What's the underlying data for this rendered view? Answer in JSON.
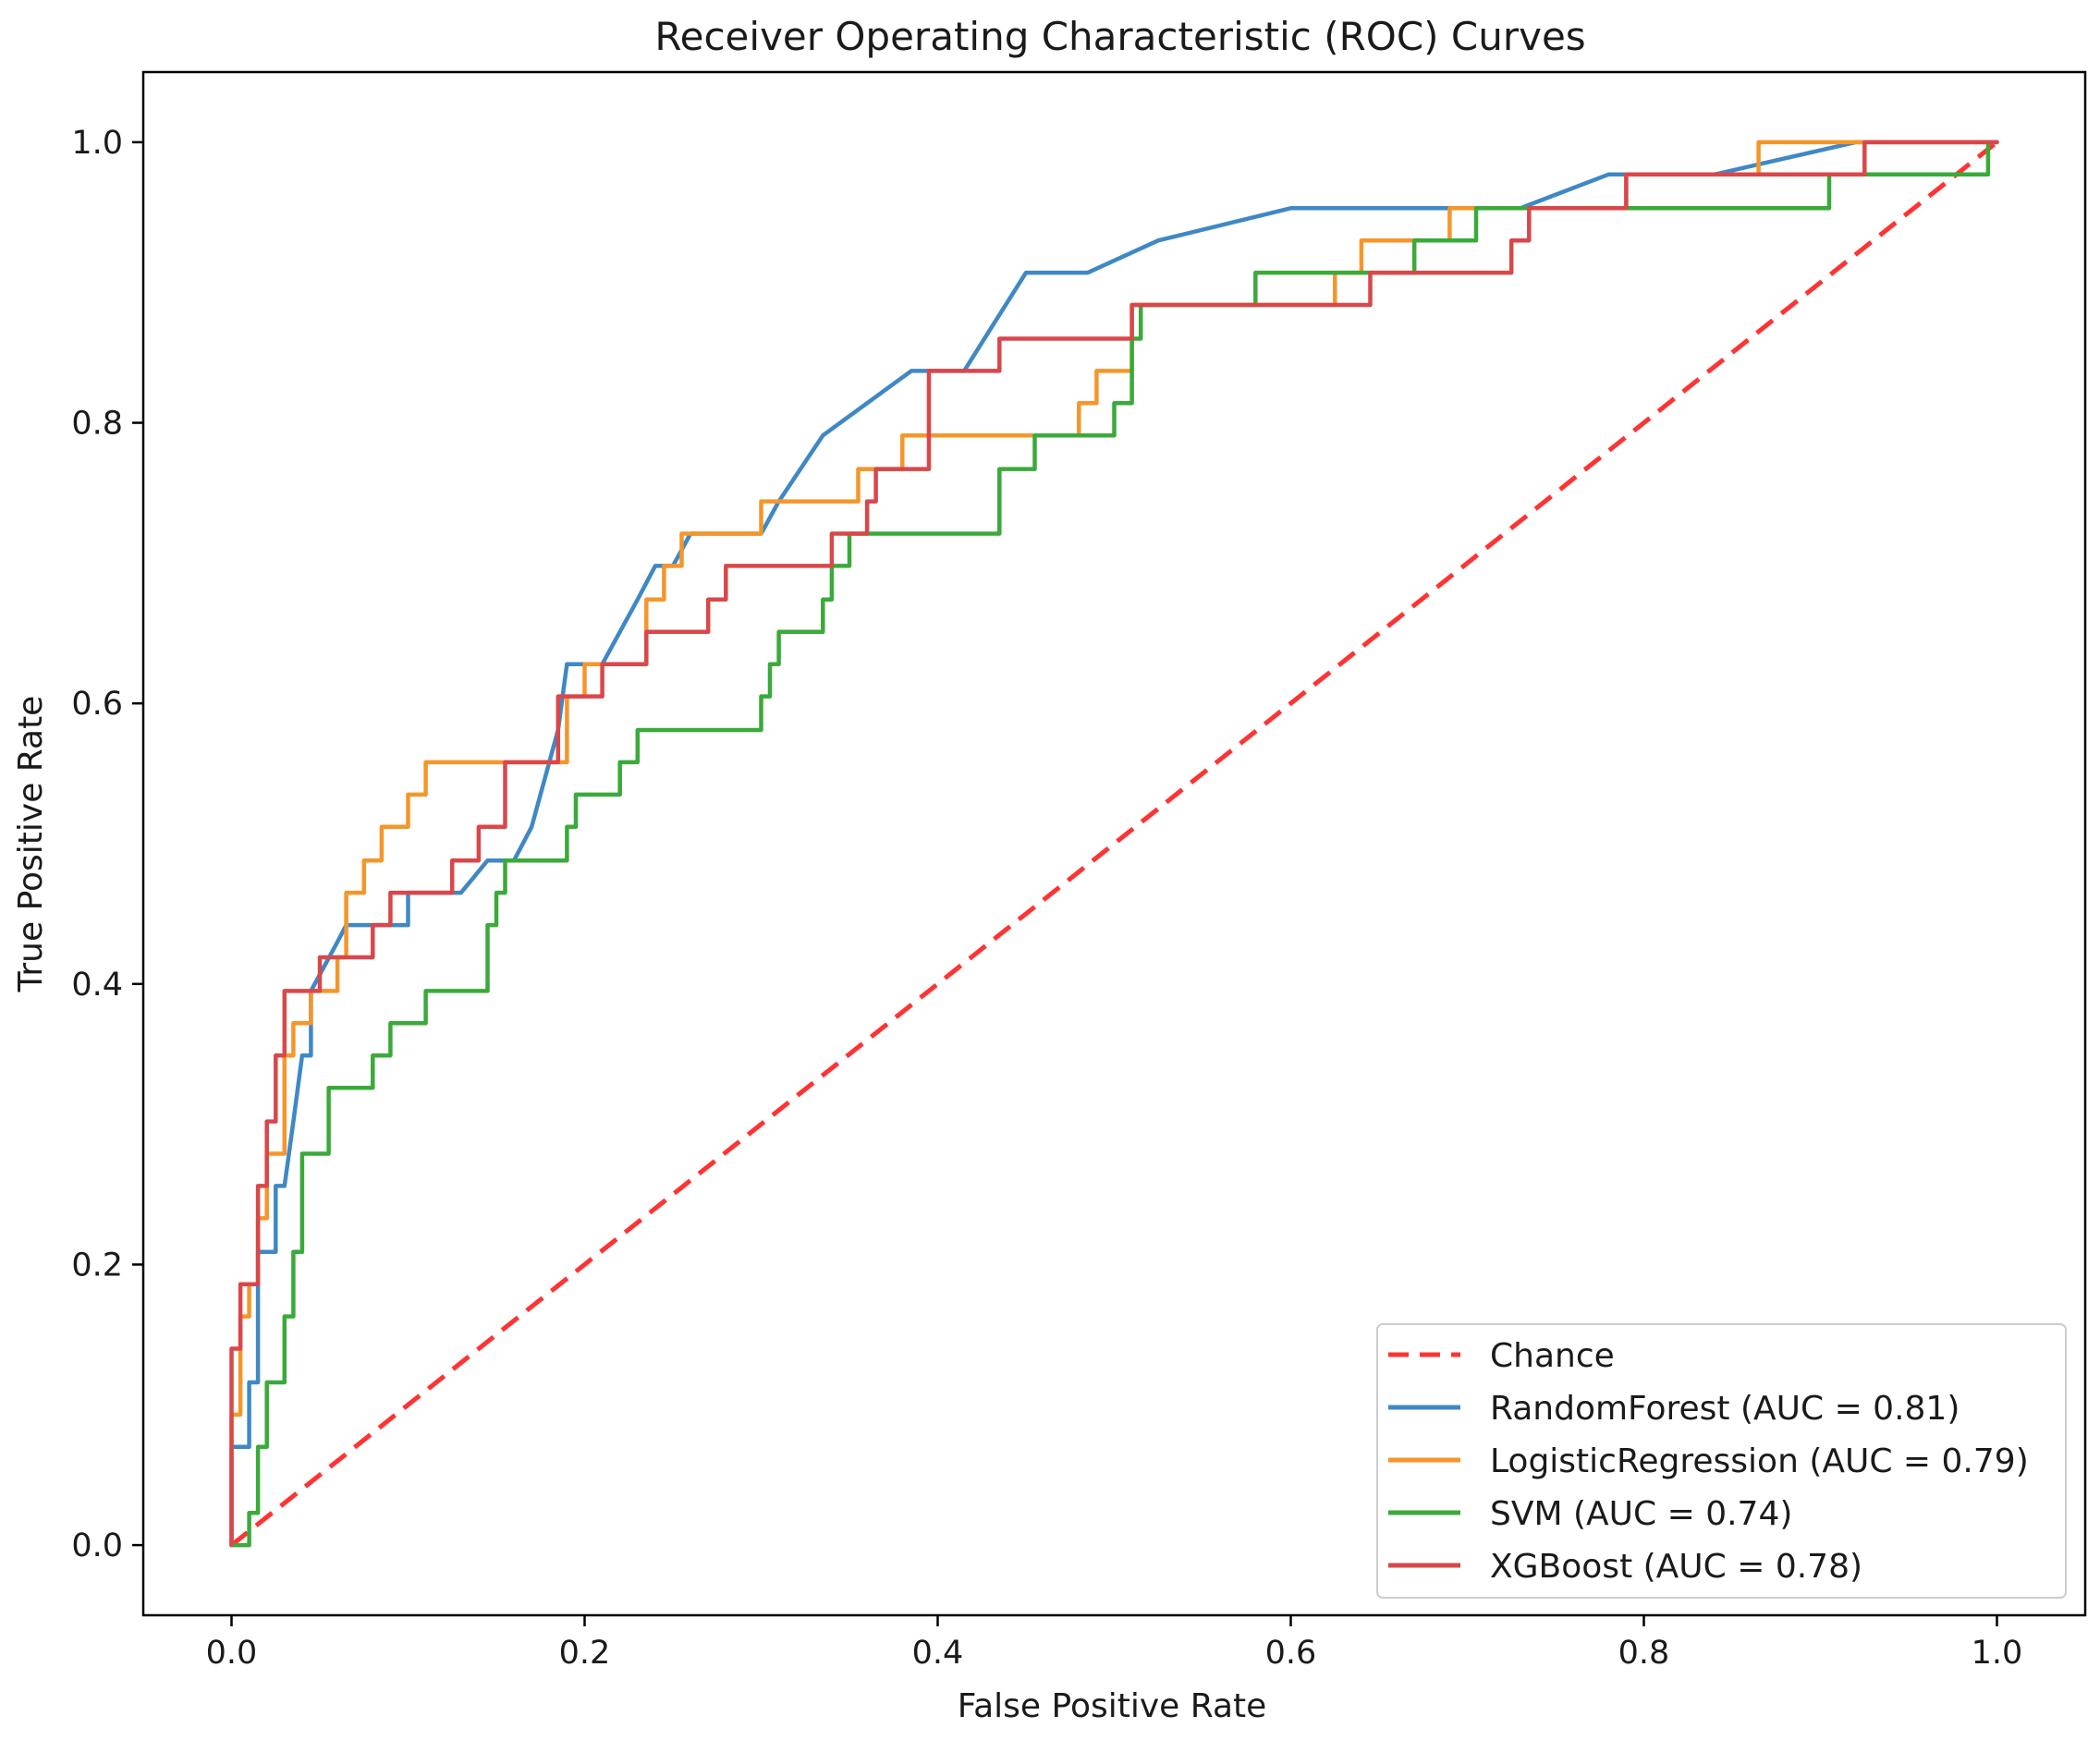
{
  "chart_data": {
    "type": "line",
    "title": "Receiver Operating Characteristic (ROC) Curves",
    "xlabel": "False Positive Rate",
    "ylabel": "True Positive Rate",
    "xlim": [
      -0.05,
      1.05
    ],
    "ylim": [
      -0.05,
      1.05
    ],
    "xticks": [
      0.0,
      0.2,
      0.4,
      0.6,
      0.8,
      1.0
    ],
    "xtick_labels": [
      "0.0",
      "0.2",
      "0.4",
      "0.6",
      "0.8",
      "1.0"
    ],
    "yticks": [
      0.0,
      0.2,
      0.4,
      0.6,
      0.8,
      1.0
    ],
    "ytick_labels": [
      "0.0",
      "0.2",
      "0.4",
      "0.6",
      "0.8",
      "1.0"
    ],
    "grid": false,
    "legend_position": "lower-right",
    "series": [
      {
        "key": "chance",
        "name": "Chance",
        "color": "#ff3333",
        "dashed": true,
        "points": [
          [
            0,
            0
          ],
          [
            1,
            1
          ]
        ]
      },
      {
        "key": "rf",
        "name": "RandomForest (AUC = 0.81)",
        "color": "#3f88c5",
        "dashed": false,
        "points": [
          [
            0,
            0
          ],
          [
            0,
            0.07
          ],
          [
            0.01,
            0.07
          ],
          [
            0.01,
            0.116
          ],
          [
            0.015,
            0.116
          ],
          [
            0.015,
            0.209
          ],
          [
            0.025,
            0.209
          ],
          [
            0.025,
            0.256
          ],
          [
            0.03,
            0.256
          ],
          [
            0.035,
            0.302
          ],
          [
            0.04,
            0.349
          ],
          [
            0.045,
            0.349
          ],
          [
            0.045,
            0.395
          ],
          [
            0.06,
            0.43
          ],
          [
            0.065,
            0.442
          ],
          [
            0.1,
            0.442
          ],
          [
            0.1,
            0.465
          ],
          [
            0.13,
            0.465
          ],
          [
            0.145,
            0.488
          ],
          [
            0.16,
            0.488
          ],
          [
            0.17,
            0.512
          ],
          [
            0.185,
            0.581
          ],
          [
            0.19,
            0.628
          ],
          [
            0.21,
            0.628
          ],
          [
            0.23,
            0.674
          ],
          [
            0.24,
            0.698
          ],
          [
            0.25,
            0.698
          ],
          [
            0.26,
            0.721
          ],
          [
            0.3,
            0.721
          ],
          [
            0.31,
            0.744
          ],
          [
            0.335,
            0.791
          ],
          [
            0.36,
            0.814
          ],
          [
            0.385,
            0.837
          ],
          [
            0.415,
            0.837
          ],
          [
            0.45,
            0.907
          ],
          [
            0.485,
            0.907
          ],
          [
            0.525,
            0.93
          ],
          [
            0.6,
            0.953
          ],
          [
            0.73,
            0.953
          ],
          [
            0.78,
            0.977
          ],
          [
            0.84,
            0.977
          ],
          [
            0.92,
            1.0
          ],
          [
            1.0,
            1.0
          ]
        ]
      },
      {
        "key": "lr",
        "name": "LogisticRegression (AUC = 0.79)",
        "color": "#f5962a",
        "dashed": false,
        "points": [
          [
            0,
            0
          ],
          [
            0,
            0.093
          ],
          [
            0.005,
            0.093
          ],
          [
            0.005,
            0.163
          ],
          [
            0.01,
            0.163
          ],
          [
            0.01,
            0.186
          ],
          [
            0.015,
            0.186
          ],
          [
            0.015,
            0.233
          ],
          [
            0.02,
            0.233
          ],
          [
            0.02,
            0.279
          ],
          [
            0.03,
            0.279
          ],
          [
            0.03,
            0.349
          ],
          [
            0.035,
            0.349
          ],
          [
            0.035,
            0.372
          ],
          [
            0.045,
            0.372
          ],
          [
            0.045,
            0.395
          ],
          [
            0.06,
            0.395
          ],
          [
            0.06,
            0.419
          ],
          [
            0.065,
            0.419
          ],
          [
            0.065,
            0.465
          ],
          [
            0.075,
            0.465
          ],
          [
            0.075,
            0.488
          ],
          [
            0.085,
            0.488
          ],
          [
            0.085,
            0.512
          ],
          [
            0.1,
            0.512
          ],
          [
            0.1,
            0.535
          ],
          [
            0.11,
            0.535
          ],
          [
            0.11,
            0.558
          ],
          [
            0.19,
            0.558
          ],
          [
            0.19,
            0.605
          ],
          [
            0.2,
            0.605
          ],
          [
            0.2,
            0.628
          ],
          [
            0.235,
            0.628
          ],
          [
            0.235,
            0.674
          ],
          [
            0.245,
            0.674
          ],
          [
            0.245,
            0.698
          ],
          [
            0.255,
            0.698
          ],
          [
            0.255,
            0.721
          ],
          [
            0.3,
            0.721
          ],
          [
            0.3,
            0.744
          ],
          [
            0.355,
            0.744
          ],
          [
            0.355,
            0.767
          ],
          [
            0.38,
            0.767
          ],
          [
            0.38,
            0.791
          ],
          [
            0.48,
            0.791
          ],
          [
            0.48,
            0.814
          ],
          [
            0.49,
            0.814
          ],
          [
            0.49,
            0.837
          ],
          [
            0.51,
            0.837
          ],
          [
            0.51,
            0.884
          ],
          [
            0.625,
            0.884
          ],
          [
            0.625,
            0.907
          ],
          [
            0.64,
            0.907
          ],
          [
            0.64,
            0.93
          ],
          [
            0.69,
            0.93
          ],
          [
            0.69,
            0.953
          ],
          [
            0.79,
            0.953
          ],
          [
            0.79,
            0.977
          ],
          [
            0.865,
            0.977
          ],
          [
            0.865,
            1.0
          ],
          [
            1.0,
            1.0
          ]
        ]
      },
      {
        "key": "svm",
        "name": "SVM (AUC = 0.74)",
        "color": "#3aaa3a",
        "dashed": false,
        "points": [
          [
            0,
            0
          ],
          [
            0.01,
            0
          ],
          [
            0.01,
            0.023
          ],
          [
            0.015,
            0.023
          ],
          [
            0.015,
            0.07
          ],
          [
            0.02,
            0.07
          ],
          [
            0.02,
            0.116
          ],
          [
            0.03,
            0.116
          ],
          [
            0.03,
            0.163
          ],
          [
            0.035,
            0.163
          ],
          [
            0.035,
            0.209
          ],
          [
            0.04,
            0.209
          ],
          [
            0.04,
            0.279
          ],
          [
            0.055,
            0.279
          ],
          [
            0.055,
            0.326
          ],
          [
            0.08,
            0.326
          ],
          [
            0.08,
            0.349
          ],
          [
            0.09,
            0.349
          ],
          [
            0.09,
            0.372
          ],
          [
            0.11,
            0.372
          ],
          [
            0.11,
            0.395
          ],
          [
            0.145,
            0.395
          ],
          [
            0.145,
            0.442
          ],
          [
            0.15,
            0.442
          ],
          [
            0.15,
            0.465
          ],
          [
            0.155,
            0.465
          ],
          [
            0.155,
            0.488
          ],
          [
            0.19,
            0.488
          ],
          [
            0.19,
            0.512
          ],
          [
            0.195,
            0.512
          ],
          [
            0.195,
            0.535
          ],
          [
            0.22,
            0.535
          ],
          [
            0.22,
            0.558
          ],
          [
            0.23,
            0.558
          ],
          [
            0.23,
            0.581
          ],
          [
            0.3,
            0.581
          ],
          [
            0.3,
            0.605
          ],
          [
            0.305,
            0.605
          ],
          [
            0.305,
            0.628
          ],
          [
            0.31,
            0.628
          ],
          [
            0.31,
            0.651
          ],
          [
            0.335,
            0.651
          ],
          [
            0.335,
            0.674
          ],
          [
            0.34,
            0.674
          ],
          [
            0.34,
            0.698
          ],
          [
            0.35,
            0.698
          ],
          [
            0.35,
            0.721
          ],
          [
            0.435,
            0.721
          ],
          [
            0.435,
            0.767
          ],
          [
            0.455,
            0.767
          ],
          [
            0.455,
            0.791
          ],
          [
            0.5,
            0.791
          ],
          [
            0.5,
            0.814
          ],
          [
            0.51,
            0.814
          ],
          [
            0.51,
            0.86
          ],
          [
            0.515,
            0.86
          ],
          [
            0.515,
            0.884
          ],
          [
            0.58,
            0.884
          ],
          [
            0.58,
            0.907
          ],
          [
            0.67,
            0.907
          ],
          [
            0.67,
            0.93
          ],
          [
            0.705,
            0.93
          ],
          [
            0.705,
            0.953
          ],
          [
            0.905,
            0.953
          ],
          [
            0.905,
            0.977
          ],
          [
            0.995,
            0.977
          ],
          [
            0.995,
            1.0
          ],
          [
            1.0,
            1.0
          ]
        ]
      },
      {
        "key": "xgb",
        "name": "XGBoost (AUC = 0.78)",
        "color": "#d9474a",
        "dashed": false,
        "points": [
          [
            0,
            0
          ],
          [
            0,
            0.14
          ],
          [
            0.005,
            0.14
          ],
          [
            0.005,
            0.186
          ],
          [
            0.015,
            0.186
          ],
          [
            0.015,
            0.256
          ],
          [
            0.02,
            0.256
          ],
          [
            0.02,
            0.302
          ],
          [
            0.025,
            0.302
          ],
          [
            0.025,
            0.349
          ],
          [
            0.03,
            0.349
          ],
          [
            0.03,
            0.395
          ],
          [
            0.05,
            0.395
          ],
          [
            0.05,
            0.419
          ],
          [
            0.08,
            0.419
          ],
          [
            0.08,
            0.442
          ],
          [
            0.09,
            0.442
          ],
          [
            0.09,
            0.465
          ],
          [
            0.125,
            0.465
          ],
          [
            0.125,
            0.488
          ],
          [
            0.14,
            0.488
          ],
          [
            0.14,
            0.512
          ],
          [
            0.155,
            0.512
          ],
          [
            0.155,
            0.558
          ],
          [
            0.185,
            0.558
          ],
          [
            0.185,
            0.605
          ],
          [
            0.21,
            0.605
          ],
          [
            0.21,
            0.628
          ],
          [
            0.235,
            0.628
          ],
          [
            0.235,
            0.651
          ],
          [
            0.27,
            0.651
          ],
          [
            0.27,
            0.674
          ],
          [
            0.28,
            0.674
          ],
          [
            0.28,
            0.698
          ],
          [
            0.34,
            0.698
          ],
          [
            0.34,
            0.721
          ],
          [
            0.36,
            0.721
          ],
          [
            0.36,
            0.744
          ],
          [
            0.365,
            0.744
          ],
          [
            0.365,
            0.767
          ],
          [
            0.395,
            0.767
          ],
          [
            0.395,
            0.837
          ],
          [
            0.435,
            0.837
          ],
          [
            0.435,
            0.86
          ],
          [
            0.51,
            0.86
          ],
          [
            0.51,
            0.884
          ],
          [
            0.645,
            0.884
          ],
          [
            0.645,
            0.907
          ],
          [
            0.725,
            0.907
          ],
          [
            0.725,
            0.93
          ],
          [
            0.735,
            0.93
          ],
          [
            0.735,
            0.953
          ],
          [
            0.79,
            0.953
          ],
          [
            0.79,
            0.977
          ],
          [
            0.925,
            0.977
          ],
          [
            0.925,
            1.0
          ],
          [
            1.0,
            1.0
          ]
        ]
      }
    ]
  }
}
